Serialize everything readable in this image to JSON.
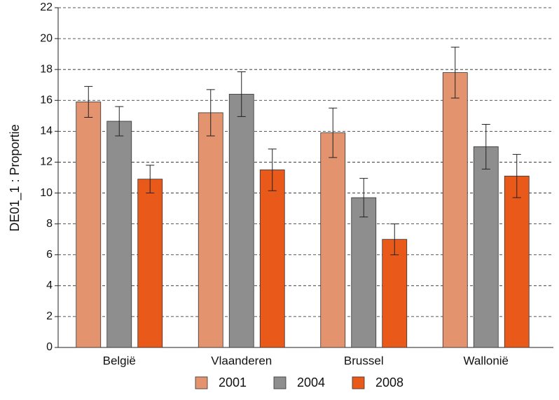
{
  "chart_data": {
    "type": "bar",
    "y_label": "DE01_1 : Proportie",
    "categories": [
      "België",
      "Vlaanderen",
      "Brussel",
      "Wallonië"
    ],
    "series": [
      {
        "name": "2001",
        "color": "#e3946f",
        "values": [
          15.9,
          15.2,
          13.9,
          17.8
        ],
        "errors": [
          1.0,
          1.5,
          1.6,
          1.65
        ]
      },
      {
        "name": "2004",
        "color": "#8e8e8e",
        "values": [
          14.65,
          16.4,
          9.7,
          13.0
        ],
        "errors": [
          0.95,
          1.45,
          1.25,
          1.45
        ]
      },
      {
        "name": "2008",
        "color": "#e8591a",
        "values": [
          10.9,
          11.5,
          7.0,
          11.1
        ],
        "errors": [
          0.9,
          1.35,
          1.0,
          1.4
        ]
      }
    ],
    "ylim": [
      0,
      22
    ],
    "yticks": [
      0,
      2,
      4,
      6,
      8,
      10,
      12,
      14,
      16,
      18,
      20,
      22
    ],
    "grid": true
  }
}
